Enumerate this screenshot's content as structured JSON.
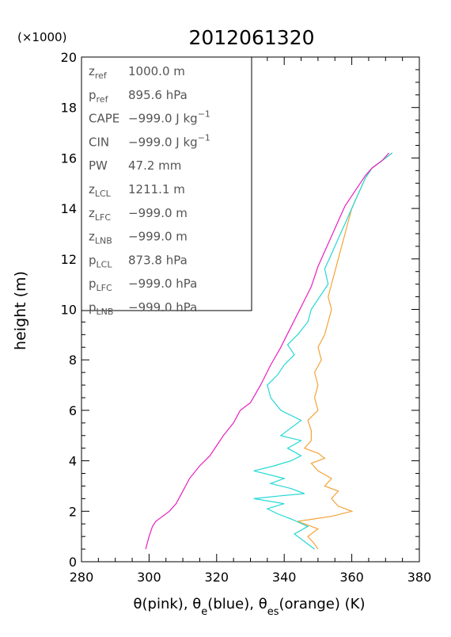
{
  "chart_data": {
    "type": "line",
    "title": "2012061320",
    "y_multiplier": "(×1000)",
    "xlabel": "θ(pink), θe(blue), θes(orange)   (K)",
    "ylabel": "height  (m)",
    "xlim": [
      280,
      380
    ],
    "ylim": [
      0,
      20
    ],
    "x_ticks": [
      "280",
      "300",
      "320",
      "340",
      "360",
      "380"
    ],
    "y_ticks": [
      "0",
      "2",
      "4",
      "6",
      "8",
      "10",
      "12",
      "14",
      "16",
      "18",
      "20"
    ],
    "grid": false,
    "series": [
      {
        "name": "θ",
        "color": "#e81fc0",
        "points": [
          [
            299,
            0.5
          ],
          [
            300,
            1.0
          ],
          [
            301,
            1.4
          ],
          [
            302,
            1.6
          ],
          [
            304,
            1.8
          ],
          [
            306,
            2.0
          ],
          [
            308,
            2.3
          ],
          [
            310,
            2.8
          ],
          [
            312,
            3.3
          ],
          [
            315,
            3.8
          ],
          [
            318,
            4.2
          ],
          [
            320,
            4.6
          ],
          [
            322,
            5.0
          ],
          [
            325,
            5.5
          ],
          [
            327,
            6.0
          ],
          [
            330,
            6.3
          ],
          [
            333,
            7.0
          ],
          [
            336,
            7.8
          ],
          [
            339,
            8.5
          ],
          [
            342,
            9.3
          ],
          [
            345,
            10.1
          ],
          [
            348,
            10.9
          ],
          [
            350,
            11.7
          ],
          [
            352,
            12.3
          ],
          [
            354,
            12.9
          ],
          [
            356,
            13.5
          ],
          [
            358,
            14.1
          ],
          [
            361,
            14.7
          ],
          [
            364,
            15.3
          ],
          [
            366,
            15.6
          ],
          [
            369,
            15.9
          ],
          [
            371,
            16.2
          ]
        ]
      },
      {
        "name": "θe",
        "color": "#22d8d6",
        "points": [
          [
            349,
            0.5
          ],
          [
            346,
            0.8
          ],
          [
            343,
            1.1
          ],
          [
            347,
            1.4
          ],
          [
            342,
            1.7
          ],
          [
            338,
            1.9
          ],
          [
            335,
            2.1
          ],
          [
            340,
            2.3
          ],
          [
            331,
            2.5
          ],
          [
            338,
            2.6
          ],
          [
            346,
            2.7
          ],
          [
            342,
            2.9
          ],
          [
            336,
            3.1
          ],
          [
            340,
            3.3
          ],
          [
            331,
            3.6
          ],
          [
            337,
            3.8
          ],
          [
            342,
            4.0
          ],
          [
            345,
            4.2
          ],
          [
            341,
            4.5
          ],
          [
            345,
            4.8
          ],
          [
            339,
            5.0
          ],
          [
            342,
            5.3
          ],
          [
            345,
            5.6
          ],
          [
            339,
            6.0
          ],
          [
            336,
            6.5
          ],
          [
            335,
            7.0
          ],
          [
            338,
            7.4
          ],
          [
            340,
            7.8
          ],
          [
            343,
            8.2
          ],
          [
            341,
            8.6
          ],
          [
            344,
            9.0
          ],
          [
            347,
            9.5
          ],
          [
            348,
            10.0
          ],
          [
            350,
            10.4
          ],
          [
            353,
            11.0
          ],
          [
            352,
            11.6
          ],
          [
            354,
            12.2
          ],
          [
            356,
            12.8
          ],
          [
            358,
            13.4
          ],
          [
            360,
            14.0
          ],
          [
            362,
            14.6
          ],
          [
            364,
            15.2
          ],
          [
            366,
            15.6
          ],
          [
            369,
            15.9
          ],
          [
            372,
            16.2
          ]
        ]
      },
      {
        "name": "θes",
        "color": "#f4a338",
        "points": [
          [
            350,
            0.5
          ],
          [
            349,
            0.7
          ],
          [
            347,
            1.0
          ],
          [
            350,
            1.3
          ],
          [
            344,
            1.6
          ],
          [
            349,
            1.7
          ],
          [
            354,
            1.8
          ],
          [
            360,
            2.0
          ],
          [
            356,
            2.2
          ],
          [
            354,
            2.5
          ],
          [
            356,
            2.8
          ],
          [
            352,
            3.0
          ],
          [
            354,
            3.3
          ],
          [
            350,
            3.6
          ],
          [
            348,
            3.9
          ],
          [
            352,
            4.1
          ],
          [
            350,
            4.3
          ],
          [
            346,
            4.5
          ],
          [
            348,
            4.8
          ],
          [
            348,
            5.2
          ],
          [
            347,
            5.6
          ],
          [
            350,
            6.0
          ],
          [
            349,
            6.5
          ],
          [
            350,
            7.0
          ],
          [
            349,
            7.5
          ],
          [
            351,
            8.0
          ],
          [
            350,
            8.5
          ],
          [
            352,
            9.0
          ],
          [
            353,
            9.5
          ],
          [
            354,
            10.0
          ],
          [
            353,
            10.5
          ],
          [
            354,
            11.0
          ],
          [
            355,
            11.5
          ],
          [
            356,
            12.0
          ],
          [
            357,
            12.5
          ],
          [
            358,
            13.0
          ],
          [
            359,
            13.5
          ],
          [
            360,
            14.0
          ],
          [
            362,
            14.6
          ],
          [
            364,
            15.2
          ],
          [
            366,
            15.6
          ],
          [
            369,
            15.9
          ],
          [
            372,
            16.2
          ]
        ]
      }
    ]
  },
  "info_box": [
    {
      "sym": "z",
      "sub": "ref",
      "val": "1000.0 m",
      "sup": ""
    },
    {
      "sym": "p",
      "sub": "ref",
      "val": "895.6 hPa",
      "sup": ""
    },
    {
      "sym": "CAPE",
      "sub": "",
      "val": "−999.0 J kg",
      "sup": "−1"
    },
    {
      "sym": "CIN",
      "sub": "",
      "val": "−999.0 J kg",
      "sup": "−1"
    },
    {
      "sym": "PW",
      "sub": "",
      "val": "47.2 mm",
      "sup": ""
    },
    {
      "sym": "z",
      "sub": "LCL",
      "val": "1211.1 m",
      "sup": ""
    },
    {
      "sym": "z",
      "sub": "LFC",
      "val": "−999.0 m",
      "sup": ""
    },
    {
      "sym": "z",
      "sub": "LNB",
      "val": "−999.0 m",
      "sup": ""
    },
    {
      "sym": "p",
      "sub": "LCL",
      "val": "873.8 hPa",
      "sup": ""
    },
    {
      "sym": "p",
      "sub": "LFC",
      "val": "−999.0 hPa",
      "sup": ""
    },
    {
      "sym": "p",
      "sub": "LNB",
      "val": "−999.0 hPa",
      "sup": ""
    }
  ]
}
